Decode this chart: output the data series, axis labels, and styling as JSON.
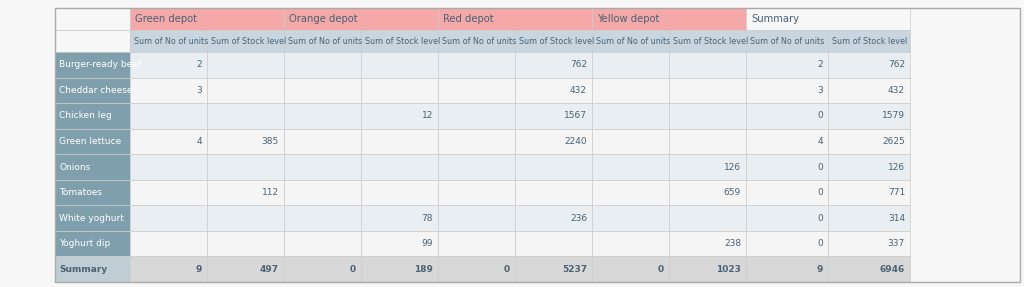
{
  "depots": [
    "Green depot",
    "Orange depot",
    "Red depot",
    "Yellow depot"
  ],
  "depot_colors": [
    "#f4a9a8",
    "#f4a9a8",
    "#f4a9a8",
    "#f4a9a8"
  ],
  "col_header_bg": "#c9d6df",
  "row_header_bg": "#7f9fad",
  "summary_header_bg": "#f0f0f0",
  "alt_row_bg": "#e8eef1",
  "row_bg": "#f5f5f5",
  "summary_row_bg": "#e0e0e0",
  "bg_color": "#f7f7f7",
  "rows": [
    "Burger-ready beef",
    "Cheddar cheese",
    "Chicken leg",
    "Green lettuce",
    "Onions",
    "Tomatoes",
    "White yoghurt",
    "Yoghurt dip",
    "Summary"
  ],
  "data": {
    "Green depot": {
      "Sum of No of units": [
        2,
        3,
        "",
        4,
        "",
        "",
        "",
        "",
        9
      ],
      "Sum of Stock level": [
        "",
        "",
        "",
        385,
        "",
        112,
        "",
        "",
        497
      ]
    },
    "Orange depot": {
      "Sum of No of units": [
        "",
        "",
        "",
        "",
        "",
        "",
        "",
        "",
        0
      ],
      "Sum of Stock level": [
        "",
        "",
        12,
        "",
        "",
        "",
        78,
        99,
        189
      ]
    },
    "Red depot": {
      "Sum of No of units": [
        "",
        "",
        "",
        "",
        "",
        "",
        "",
        "",
        0
      ],
      "Sum of Stock level": [
        762,
        432,
        1567,
        2240,
        "",
        "",
        236,
        "",
        5237
      ]
    },
    "Yellow depot": {
      "Sum of No of units": [
        "",
        "",
        "",
        "",
        "",
        "",
        "",
        "",
        0
      ],
      "Sum of Stock level": [
        "",
        "",
        "",
        "",
        126,
        659,
        "",
        238,
        1023
      ]
    },
    "Summary": {
      "Sum of No of units": [
        2,
        3,
        0,
        4,
        0,
        0,
        0,
        0,
        9
      ],
      "Sum of Stock level": [
        762,
        432,
        1579,
        2625,
        126,
        771,
        314,
        337,
        6946
      ]
    }
  },
  "header_text_color": "#4a6274",
  "depot_header_text_color": "#4a6274",
  "row_text_color": "#4a6274",
  "summary_text_color": "#4a6274"
}
